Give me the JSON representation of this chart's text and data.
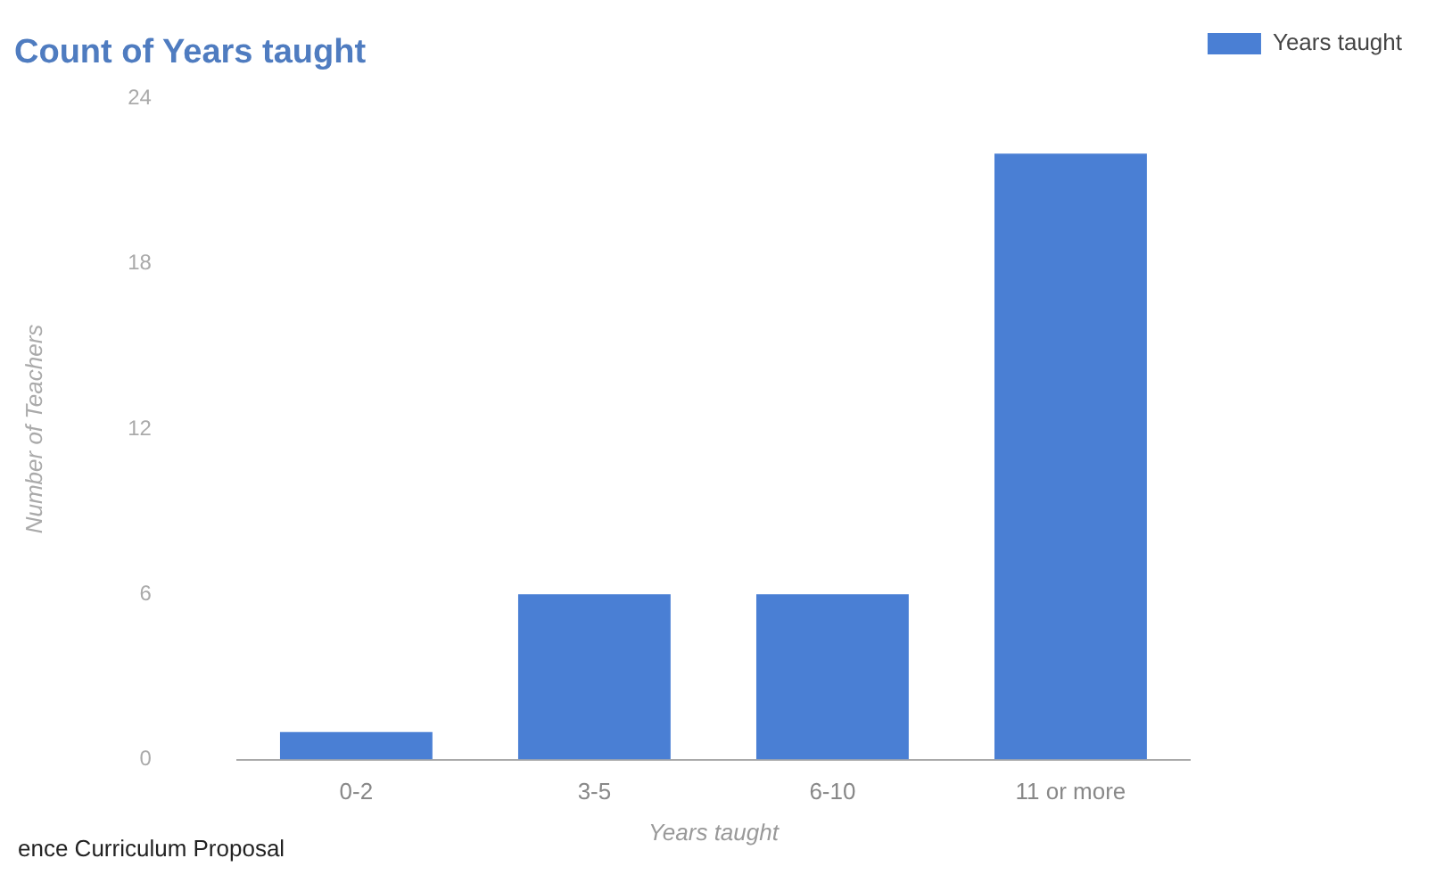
{
  "chart_data": {
    "type": "bar",
    "title": "Count of Years taught",
    "xlabel": "Years taught",
    "ylabel": "Number of Teachers",
    "categories": [
      "0-2",
      "3-5",
      "6-10",
      "11 or more"
    ],
    "series": [
      {
        "name": "Years taught",
        "color": "#4a7fd4",
        "values": [
          1,
          6,
          6,
          22
        ]
      }
    ],
    "ylim": [
      0,
      24
    ],
    "yticks": [
      0,
      6,
      12,
      18,
      24
    ],
    "grid": false,
    "legend": "top right",
    "annotations": [
      "ence Curriculum Proposal"
    ]
  }
}
